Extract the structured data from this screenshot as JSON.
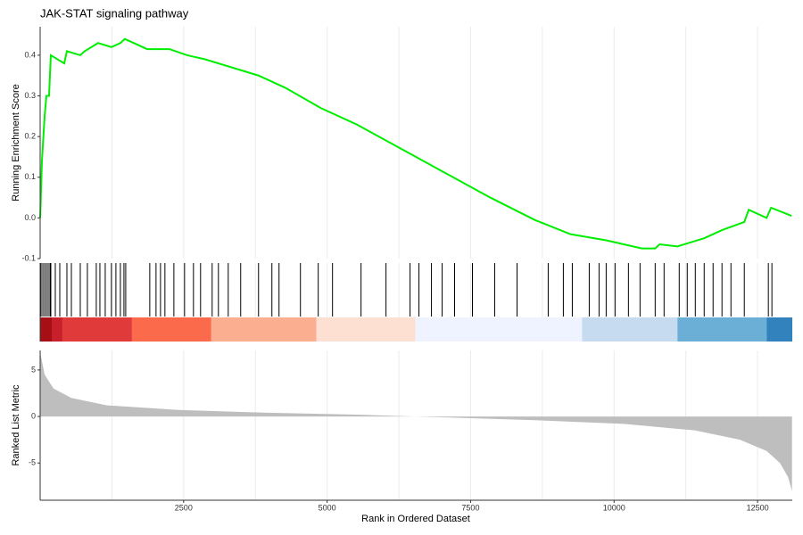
{
  "chart_data": [
    {
      "type": "line",
      "title": "JAK-STAT signaling pathway",
      "ylabel": "Running Enrichment Score",
      "color": "#00ee00",
      "x": [
        1,
        31,
        78,
        109,
        155,
        186,
        419,
        466,
        699,
        776,
        1009,
        1242,
        1398,
        1475,
        1864,
        2252,
        2562,
        2873,
        3339,
        3805,
        4271,
        4892,
        5513,
        6290,
        7066,
        7843,
        8619,
        9240,
        9862,
        10483,
        10716,
        10793,
        11104,
        11570,
        11880,
        12269,
        12346,
        12657,
        12735,
        13092
      ],
      "values": [
        0.0,
        0.14,
        0.25,
        0.3,
        0.3,
        0.4,
        0.38,
        0.41,
        0.4,
        0.41,
        0.43,
        0.42,
        0.43,
        0.44,
        0.415,
        0.415,
        0.4,
        0.39,
        0.37,
        0.35,
        0.32,
        0.27,
        0.23,
        0.17,
        0.11,
        0.05,
        -0.005,
        -0.04,
        -0.055,
        -0.075,
        -0.075,
        -0.065,
        -0.07,
        -0.05,
        -0.03,
        -0.01,
        0.02,
        0.0,
        0.025,
        0.005
      ],
      "xlim": [
        0,
        13105
      ],
      "ylim": [
        -0.1,
        0.47
      ],
      "yticks": [
        -0.1,
        {
          "value": 0,
          "label": "0.0"
        },
        0.1,
        0.2,
        0.3,
        0.4
      ],
      "xgrid": [
        1250,
        2500,
        3750,
        5000,
        6250,
        7500,
        8750,
        10000,
        11250,
        12500
      ]
    },
    {
      "type": "rug",
      "color": "#000000",
      "values": [
        16,
        47,
        78,
        109,
        140,
        171,
        186,
        264,
        342,
        466,
        544,
        699,
        823,
        978,
        1041,
        1134,
        1242,
        1320,
        1398,
        1460,
        1491,
        1910,
        2019,
        2097,
        2174,
        2330,
        2516,
        2671,
        2795,
        2997,
        3106,
        3277,
        3494,
        3805,
        4038,
        4162,
        4535,
        4845,
        5094,
        5591,
        6026,
        6445,
        6600,
        6818,
        7004,
        7221,
        7532,
        7920,
        8309,
        8852,
        9116,
        9272,
        9567,
        9738,
        9862,
        10017,
        10250,
        10452,
        10716,
        10871,
        11135,
        11275,
        11415,
        11570,
        11725,
        11880,
        12036,
        12269,
        12688,
        12750
      ],
      "color_bands": [
        {
          "start": 0,
          "end": 202,
          "color": "#a50f15"
        },
        {
          "start": 202,
          "end": 388,
          "color": "#c8202a"
        },
        {
          "start": 388,
          "end": 1600,
          "color": "#e03a3a"
        },
        {
          "start": 1600,
          "end": 2982,
          "color": "#fb6a4a"
        },
        {
          "start": 2982,
          "end": 4814,
          "color": "#fcae91"
        },
        {
          "start": 4814,
          "end": 6538,
          "color": "#fee0d2"
        },
        {
          "start": 6538,
          "end": 9442,
          "color": "#eff3ff"
        },
        {
          "start": 9442,
          "end": 11104,
          "color": "#c6dbef"
        },
        {
          "start": 11104,
          "end": 12657,
          "color": "#6baed6"
        },
        {
          "start": 12657,
          "end": 13105,
          "color": "#3182bd"
        }
      ],
      "xlim": [
        0,
        13105
      ],
      "xgrid": [
        1250,
        2500,
        3750,
        5000,
        6250,
        7500,
        8750,
        10000,
        11250,
        12500
      ]
    },
    {
      "type": "area",
      "ylabel": "Ranked List Metric",
      "xlabel": "Rank in Ordered Dataset",
      "color": "#bebebe",
      "x": [
        1,
        78,
        233,
        543,
        1165,
        2407,
        3960,
        5513,
        6290,
        7066,
        8619,
        10172,
        11415,
        12191,
        12657,
        12890,
        13030,
        13100
      ],
      "values": [
        6.9,
        4.5,
        3.0,
        2.0,
        1.2,
        0.7,
        0.4,
        0.2,
        0.05,
        -0.1,
        -0.4,
        -0.8,
        -1.5,
        -2.5,
        -3.7,
        -5.0,
        -6.5,
        -8.0
      ],
      "xlim": [
        0,
        13105
      ],
      "ylim": [
        -9,
        7.1
      ],
      "yticks": [
        -5,
        0,
        5
      ],
      "xticks": [
        2500,
        5000,
        7500,
        10000,
        12500
      ],
      "xgrid": [
        1250,
        2500,
        3750,
        5000,
        6250,
        7500,
        8750,
        10000,
        11250,
        12500
      ]
    }
  ]
}
